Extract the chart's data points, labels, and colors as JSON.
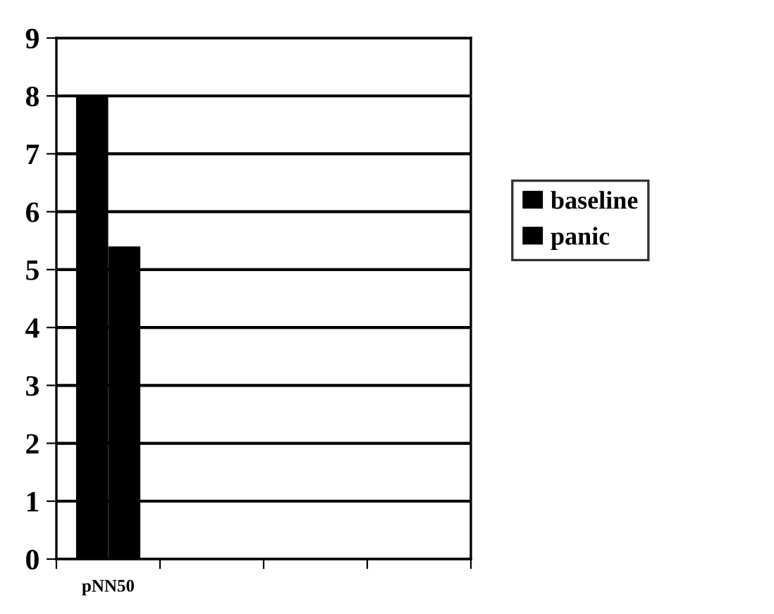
{
  "chart_data": {
    "type": "bar",
    "categories": [
      "pNN50",
      null,
      null,
      null
    ],
    "series": [
      {
        "name": "baseline",
        "color": "#000000",
        "values": [
          8,
          null,
          null,
          null
        ]
      },
      {
        "name": "panic",
        "color": "#000000",
        "values": [
          5.4,
          null,
          null,
          null
        ]
      }
    ],
    "ylim": [
      0,
      9
    ],
    "yticks": [
      0,
      1,
      2,
      3,
      4,
      5,
      6,
      7,
      8,
      9
    ],
    "grid": "y",
    "legend": "right"
  }
}
